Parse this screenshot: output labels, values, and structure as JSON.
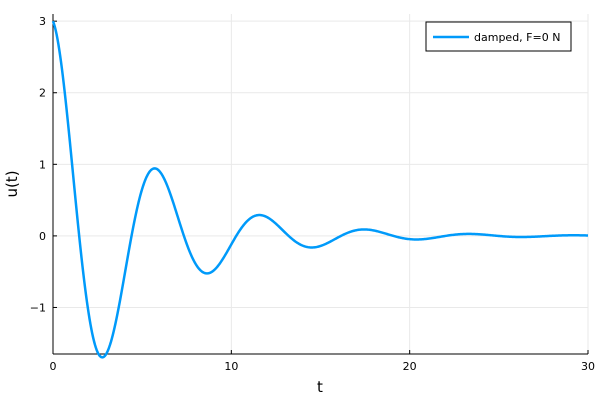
{
  "chart_data": {
    "type": "line",
    "title": "",
    "xlabel": "t",
    "ylabel": "u(t)",
    "xlim": [
      0,
      30
    ],
    "ylim": [
      -1.65,
      3.1
    ],
    "x_ticks": [
      0,
      10,
      20,
      30
    ],
    "y_ticks": [
      -1,
      0,
      1,
      2,
      3
    ],
    "grid": true,
    "legend_position": "top-right",
    "series": [
      {
        "name": "damped, F=0 N",
        "color": "#009AFA",
        "model": {
          "form": "damped_cosine",
          "amplitude": 3.0,
          "decay_rate": 0.2,
          "angular_frequency": 1.07
        },
        "x": [
          0,
          0.5,
          1,
          1.5,
          2,
          2.5,
          2.95,
          3.5,
          4,
          4.5,
          5,
          5.5,
          5.9,
          6.5,
          7,
          7.5,
          8,
          8.5,
          8.8,
          9.5,
          10,
          10.5,
          11,
          11.5,
          11.8,
          12.5,
          13,
          13.5,
          14,
          14.5,
          14.7,
          15.5,
          16,
          16.5,
          17,
          17.6,
          18.5,
          19,
          19.5,
          20.5,
          21.5,
          22.5,
          23.5,
          24.5,
          25.5,
          26.5,
          27.5,
          28.5,
          29.5,
          30
        ],
        "y": [
          3.0,
          2.3,
          0.95,
          -0.38,
          -1.22,
          -1.51,
          -1.53,
          -1.19,
          -0.55,
          0.14,
          0.58,
          0.76,
          0.78,
          0.59,
          0.25,
          -0.1,
          -0.34,
          -0.41,
          -0.4,
          -0.24,
          -0.05,
          0.1,
          0.19,
          0.2,
          0.19,
          0.13,
          0.03,
          -0.05,
          -0.09,
          -0.1,
          -0.1,
          -0.06,
          -0.02,
          0.02,
          0.04,
          0.05,
          0.03,
          0.01,
          -0.01,
          -0.02,
          -0.01,
          0.01,
          0.01,
          0.01,
          0.0,
          -0.01,
          0.0,
          0.0,
          0.0,
          0.0
        ]
      }
    ]
  }
}
